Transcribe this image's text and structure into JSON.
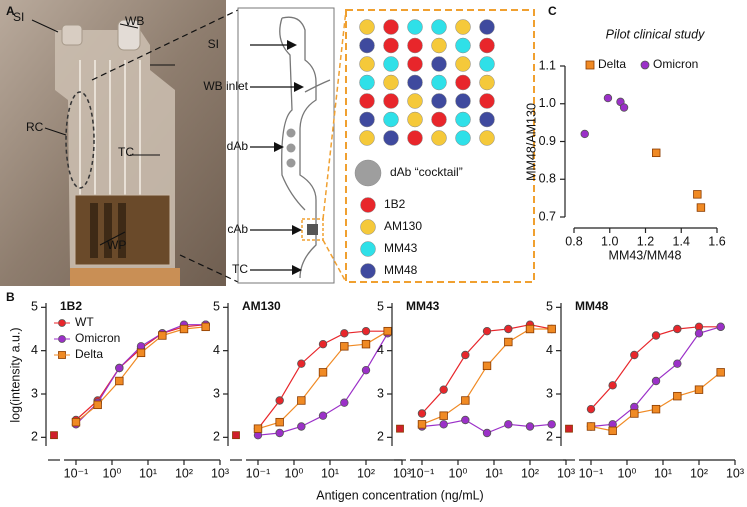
{
  "panels": {
    "a": "A",
    "b": "B",
    "c": "C"
  },
  "photo_labels": [
    "SI",
    "WB",
    "RC",
    "TC",
    "WP"
  ],
  "diagram": {
    "labels": [
      "SI",
      "WB inlet",
      "dAb",
      "cAb",
      "TC"
    ],
    "legend": [
      {
        "label": "dAb “cocktail”",
        "color": "#9e9e9e"
      },
      {
        "label": "1B2",
        "color": "#e8262b"
      },
      {
        "label": "AM130",
        "color": "#f5c93a"
      },
      {
        "label": "MM43",
        "color": "#2fe0e8"
      },
      {
        "label": "MM48",
        "color": "#3f4a9e"
      }
    ]
  },
  "figure_b": {
    "y_label": "log(intensity a.u.)",
    "x_label": "Antigen concentration (ng/mL)"
  },
  "chart_data": [
    {
      "type": "scatter",
      "title": "Pilot clinical study",
      "x_label": "MM43/MM48",
      "y_label": "MM48/AM130",
      "xlim": [
        0.8,
        1.6
      ],
      "xticks": [
        0.8,
        {
          "value": 1,
          "label": "1.0"
        },
        1.2,
        1.4,
        1.6
      ],
      "ylim": [
        0.7,
        1.1
      ],
      "yticks": [
        0.7,
        0.8,
        0.9,
        {
          "value": 1,
          "label": "1.0"
        },
        1.1
      ],
      "series": [
        {
          "name": "Delta",
          "color": "#f08a24",
          "marker": "square",
          "x": [
            1.26,
            1.49,
            1.51
          ],
          "values": [
            0.87,
            0.76,
            0.725
          ]
        },
        {
          "name": "Omicron",
          "color": "#9b30c8",
          "marker": "circle",
          "x": [
            0.86,
            0.99,
            1.06,
            1.08
          ],
          "values": [
            0.92,
            1.015,
            1.005,
            0.99
          ]
        }
      ]
    },
    {
      "type": "line",
      "title": "1B2",
      "xscale": "log",
      "legend": true,
      "xlim": [
        0.06,
        1000
      ],
      "xticks": [
        {
          "value": 0.1,
          "label": "10⁻¹"
        },
        {
          "value": 1,
          "label": "10⁰"
        },
        {
          "value": 10,
          "label": "10¹"
        },
        {
          "value": 100,
          "label": "10²"
        },
        {
          "value": 1000,
          "label": "10³"
        }
      ],
      "ylim": [
        1.8,
        5.1
      ],
      "yticks": [
        2,
        3,
        4,
        5
      ],
      "blank": 2.05,
      "x": [
        0.1,
        0.4,
        1.6,
        6.4,
        25,
        100,
        400
      ],
      "series": [
        {
          "name": "WT",
          "color": "#e8262b",
          "marker": "circle",
          "values": [
            2.4,
            2.85,
            3.6,
            4.05,
            4.4,
            4.55,
            4.6
          ]
        },
        {
          "name": "Omicron",
          "color": "#9b30c8",
          "marker": "circle",
          "values": [
            2.3,
            2.8,
            3.6,
            4.1,
            4.4,
            4.6,
            4.6
          ]
        },
        {
          "name": "Delta",
          "color": "#f08a24",
          "marker": "square",
          "values": [
            2.35,
            2.75,
            3.3,
            3.95,
            4.35,
            4.5,
            4.55
          ]
        }
      ]
    },
    {
      "type": "line",
      "title": "AM130",
      "xscale": "log",
      "legend": false,
      "xlim": [
        0.06,
        1000
      ],
      "xticks": [
        {
          "value": 0.1,
          "label": "10⁻¹"
        },
        {
          "value": 1,
          "label": "10⁰"
        },
        {
          "value": 10,
          "label": "10¹"
        },
        {
          "value": 100,
          "label": "10²"
        },
        {
          "value": 1000,
          "label": "10³"
        }
      ],
      "ylim": [
        1.8,
        5.1
      ],
      "yticks": [
        2,
        3,
        4,
        5
      ],
      "blank": 2.05,
      "x": [
        0.1,
        0.4,
        1.6,
        6.4,
        25,
        100,
        400
      ],
      "series": [
        {
          "name": "WT",
          "color": "#e8262b",
          "marker": "circle",
          "values": [
            2.2,
            2.85,
            3.7,
            4.15,
            4.4,
            4.45,
            4.45
          ]
        },
        {
          "name": "Omicron",
          "color": "#9b30c8",
          "marker": "circle",
          "values": [
            2.05,
            2.1,
            2.25,
            2.5,
            2.8,
            3.55,
            4.4
          ]
        },
        {
          "name": "Delta",
          "color": "#f08a24",
          "marker": "square",
          "values": [
            2.2,
            2.35,
            2.85,
            3.5,
            4.1,
            4.15,
            4.45
          ]
        }
      ]
    },
    {
      "type": "line",
      "title": "MM43",
      "xscale": "log",
      "legend": false,
      "xlim": [
        0.06,
        1000
      ],
      "xticks": [
        {
          "value": 0.1,
          "label": "10⁻¹"
        },
        {
          "value": 1,
          "label": "10⁰"
        },
        {
          "value": 10,
          "label": "10¹"
        },
        {
          "value": 100,
          "label": "10²"
        },
        {
          "value": 1000,
          "label": "10³"
        }
      ],
      "ylim": [
        1.8,
        5.1
      ],
      "yticks": [
        2,
        3,
        4,
        5
      ],
      "blank": 2.2,
      "x": [
        0.1,
        0.4,
        1.6,
        6.4,
        25,
        100,
        400
      ],
      "series": [
        {
          "name": "WT",
          "color": "#e8262b",
          "marker": "circle",
          "values": [
            2.55,
            3.1,
            3.9,
            4.45,
            4.5,
            4.6,
            4.5
          ]
        },
        {
          "name": "Omicron",
          "color": "#9b30c8",
          "marker": "circle",
          "values": [
            2.25,
            2.3,
            2.4,
            2.1,
            2.3,
            2.25,
            2.3
          ]
        },
        {
          "name": "Delta",
          "color": "#f08a24",
          "marker": "square",
          "values": [
            2.3,
            2.5,
            2.85,
            3.65,
            4.2,
            4.5,
            4.5
          ]
        }
      ]
    },
    {
      "type": "line",
      "title": "MM48",
      "xscale": "log",
      "legend": false,
      "xlim": [
        0.06,
        1000
      ],
      "xticks": [
        {
          "value": 0.1,
          "label": "10⁻¹"
        },
        {
          "value": 1,
          "label": "10⁰"
        },
        {
          "value": 10,
          "label": "10¹"
        },
        {
          "value": 100,
          "label": "10²"
        },
        {
          "value": 1000,
          "label": "10³"
        }
      ],
      "ylim": [
        1.8,
        5.1
      ],
      "yticks": [
        2,
        3,
        4,
        5
      ],
      "blank": 2.2,
      "x": [
        0.1,
        0.4,
        1.6,
        6.4,
        25,
        100,
        400
      ],
      "series": [
        {
          "name": "WT",
          "color": "#e8262b",
          "marker": "circle",
          "values": [
            2.65,
            3.2,
            3.9,
            4.35,
            4.5,
            4.55,
            4.55
          ]
        },
        {
          "name": "Omicron",
          "color": "#9b30c8",
          "marker": "circle",
          "values": [
            2.25,
            2.3,
            2.7,
            3.3,
            3.7,
            4.4,
            4.55
          ]
        },
        {
          "name": "Delta",
          "color": "#f08a24",
          "marker": "square",
          "values": [
            2.25,
            2.15,
            2.55,
            2.65,
            2.95,
            3.1,
            3.5
          ]
        }
      ]
    }
  ]
}
